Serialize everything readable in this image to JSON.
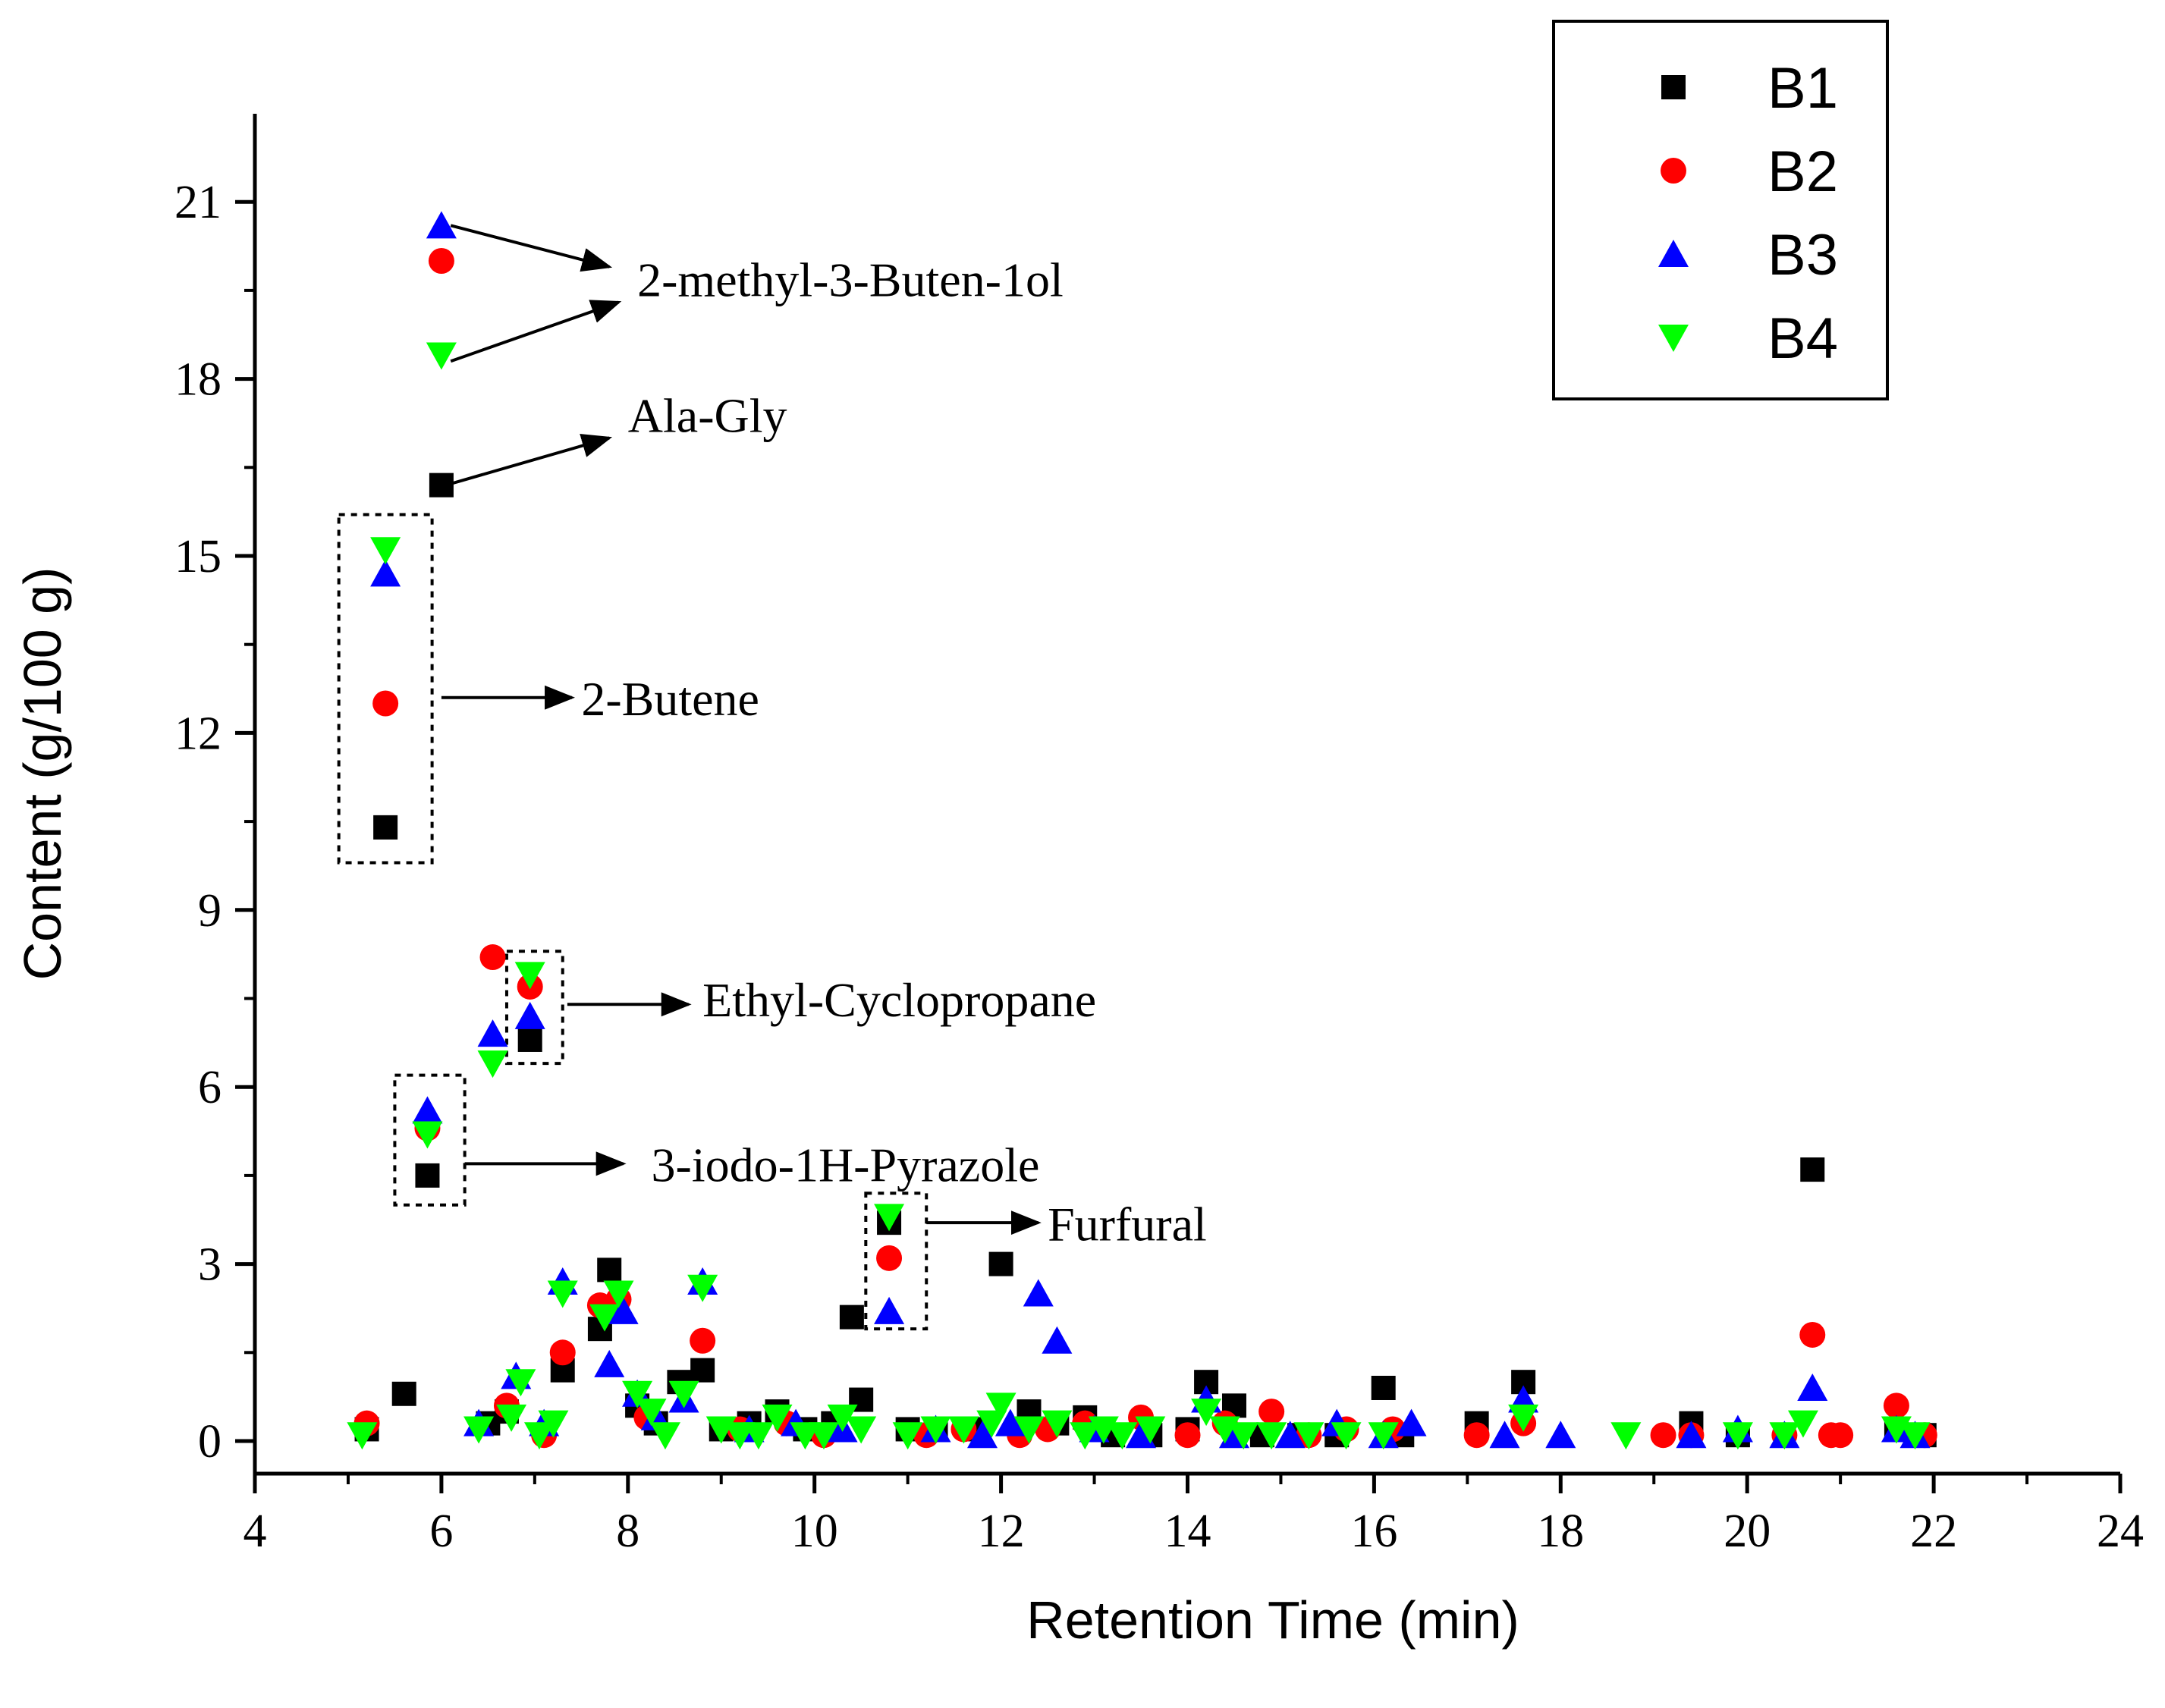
{
  "chart_data": {
    "type": "scatter",
    "title": "",
    "xlabel": "Retention Time (min)",
    "ylabel": "Content (g/100 g)",
    "xlim": [
      4,
      24
    ],
    "ylim": [
      -0.5,
      22
    ],
    "xticks": [
      4,
      6,
      8,
      10,
      12,
      14,
      16,
      18,
      20,
      22,
      24
    ],
    "yticks": [
      0,
      3,
      6,
      9,
      12,
      15,
      18,
      21
    ],
    "grid": false,
    "legend_position": "top-right",
    "series": [
      {
        "name": "B1",
        "marker": "square",
        "color": "#000000",
        "points": [
          [
            5.2,
            0.2
          ],
          [
            5.6,
            0.8
          ],
          [
            6.0,
            16.2
          ],
          [
            5.4,
            10.4
          ],
          [
            5.85,
            4.5
          ],
          [
            6.5,
            0.3
          ],
          [
            6.7,
            0.5
          ],
          [
            6.95,
            6.8
          ],
          [
            7.3,
            1.2
          ],
          [
            7.7,
            1.9
          ],
          [
            7.8,
            2.9
          ],
          [
            8.1,
            0.6
          ],
          [
            8.3,
            0.3
          ],
          [
            8.55,
            1.0
          ],
          [
            8.8,
            1.2
          ],
          [
            9.0,
            0.2
          ],
          [
            9.3,
            0.3
          ],
          [
            9.6,
            0.5
          ],
          [
            9.9,
            0.2
          ],
          [
            10.2,
            0.3
          ],
          [
            10.4,
            2.1
          ],
          [
            10.5,
            0.7
          ],
          [
            10.8,
            3.7
          ],
          [
            11.0,
            0.2
          ],
          [
            11.3,
            0.2
          ],
          [
            11.7,
            0.2
          ],
          [
            12.0,
            3.0
          ],
          [
            12.3,
            0.5
          ],
          [
            12.6,
            0.3
          ],
          [
            12.9,
            0.4
          ],
          [
            13.2,
            0.1
          ],
          [
            13.6,
            0.1
          ],
          [
            14.0,
            0.2
          ],
          [
            14.2,
            1.0
          ],
          [
            14.5,
            0.6
          ],
          [
            14.8,
            0.1
          ],
          [
            15.2,
            0.1
          ],
          [
            15.6,
            0.1
          ],
          [
            16.1,
            0.9
          ],
          [
            16.3,
            0.1
          ],
          [
            17.1,
            0.3
          ],
          [
            17.6,
            1.0
          ],
          [
            19.4,
            0.3
          ],
          [
            19.9,
            0.1
          ],
          [
            20.7,
            4.6
          ],
          [
            21.6,
            0.2
          ],
          [
            21.9,
            0.1
          ]
        ]
      },
      {
        "name": "B2",
        "marker": "circle",
        "color": "#ff0000",
        "points": [
          [
            5.2,
            0.3
          ],
          [
            6.0,
            20.0
          ],
          [
            5.4,
            12.5
          ],
          [
            5.85,
            5.3
          ],
          [
            6.55,
            8.2
          ],
          [
            6.95,
            7.7
          ],
          [
            6.7,
            0.6
          ],
          [
            7.1,
            0.1
          ],
          [
            7.3,
            1.5
          ],
          [
            7.7,
            2.3
          ],
          [
            7.9,
            2.4
          ],
          [
            8.2,
            0.4
          ],
          [
            8.8,
            1.7
          ],
          [
            9.2,
            0.2
          ],
          [
            9.7,
            0.3
          ],
          [
            10.1,
            0.1
          ],
          [
            10.8,
            3.1
          ],
          [
            11.2,
            0.1
          ],
          [
            11.6,
            0.2
          ],
          [
            12.2,
            0.1
          ],
          [
            12.5,
            0.2
          ],
          [
            12.9,
            0.3
          ],
          [
            13.5,
            0.4
          ],
          [
            14.0,
            0.1
          ],
          [
            14.4,
            0.3
          ],
          [
            14.9,
            0.5
          ],
          [
            15.3,
            0.1
          ],
          [
            15.7,
            0.2
          ],
          [
            16.2,
            0.2
          ],
          [
            17.1,
            0.1
          ],
          [
            17.6,
            0.3
          ],
          [
            19.1,
            0.1
          ],
          [
            19.4,
            0.1
          ],
          [
            20.4,
            0.1
          ],
          [
            20.7,
            1.8
          ],
          [
            20.9,
            0.1
          ],
          [
            21.0,
            0.1
          ],
          [
            21.6,
            0.6
          ],
          [
            21.9,
            0.1
          ]
        ]
      },
      {
        "name": "B3",
        "marker": "triangle-up",
        "color": "#0000ff",
        "points": [
          [
            6.0,
            20.6
          ],
          [
            5.4,
            14.7
          ],
          [
            5.85,
            5.6
          ],
          [
            6.55,
            6.9
          ],
          [
            6.95,
            7.2
          ],
          [
            6.4,
            0.3
          ],
          [
            6.8,
            1.1
          ],
          [
            7.1,
            0.3
          ],
          [
            7.3,
            2.7
          ],
          [
            7.8,
            1.3
          ],
          [
            7.95,
            2.2
          ],
          [
            8.1,
            0.8
          ],
          [
            8.3,
            0.4
          ],
          [
            8.6,
            0.7
          ],
          [
            8.8,
            2.7
          ],
          [
            9.3,
            0.2
          ],
          [
            9.8,
            0.3
          ],
          [
            10.3,
            0.2
          ],
          [
            10.8,
            2.2
          ],
          [
            11.3,
            0.2
          ],
          [
            11.8,
            0.1
          ],
          [
            12.1,
            0.3
          ],
          [
            12.4,
            2.5
          ],
          [
            12.6,
            1.7
          ],
          [
            13.0,
            0.2
          ],
          [
            13.5,
            0.1
          ],
          [
            14.2,
            0.7
          ],
          [
            14.5,
            0.1
          ],
          [
            15.1,
            0.1
          ],
          [
            15.6,
            0.3
          ],
          [
            16.1,
            0.1
          ],
          [
            16.4,
            0.3
          ],
          [
            17.4,
            0.1
          ],
          [
            17.6,
            0.7
          ],
          [
            18.0,
            0.1
          ],
          [
            19.4,
            0.1
          ],
          [
            19.9,
            0.2
          ],
          [
            20.4,
            0.1
          ],
          [
            20.7,
            0.9
          ],
          [
            21.6,
            0.2
          ],
          [
            21.8,
            0.1
          ]
        ]
      },
      {
        "name": "B4",
        "marker": "triangle-down",
        "color": "#00ff00",
        "points": [
          [
            5.15,
            0.1
          ],
          [
            6.0,
            18.4
          ],
          [
            5.4,
            15.1
          ],
          [
            5.85,
            5.2
          ],
          [
            6.55,
            6.4
          ],
          [
            6.95,
            7.9
          ],
          [
            6.4,
            0.2
          ],
          [
            6.75,
            0.4
          ],
          [
            6.85,
            1.0
          ],
          [
            7.05,
            0.1
          ],
          [
            7.2,
            0.3
          ],
          [
            7.3,
            2.5
          ],
          [
            7.75,
            2.1
          ],
          [
            7.9,
            2.5
          ],
          [
            8.1,
            0.8
          ],
          [
            8.25,
            0.5
          ],
          [
            8.4,
            0.1
          ],
          [
            8.6,
            0.8
          ],
          [
            8.8,
            2.6
          ],
          [
            9.0,
            0.2
          ],
          [
            9.2,
            0.1
          ],
          [
            9.4,
            0.1
          ],
          [
            9.6,
            0.4
          ],
          [
            9.9,
            0.1
          ],
          [
            10.1,
            0.1
          ],
          [
            10.3,
            0.4
          ],
          [
            10.5,
            0.2
          ],
          [
            10.8,
            3.8
          ],
          [
            11.0,
            0.1
          ],
          [
            11.3,
            0.2
          ],
          [
            11.6,
            0.2
          ],
          [
            11.9,
            0.3
          ],
          [
            12.0,
            0.6
          ],
          [
            12.3,
            0.2
          ],
          [
            12.6,
            0.3
          ],
          [
            12.9,
            0.1
          ],
          [
            13.1,
            0.2
          ],
          [
            13.3,
            0.1
          ],
          [
            13.6,
            0.2
          ],
          [
            14.2,
            0.5
          ],
          [
            14.4,
            0.2
          ],
          [
            14.6,
            0.1
          ],
          [
            14.9,
            0.1
          ],
          [
            15.3,
            0.1
          ],
          [
            15.7,
            0.1
          ],
          [
            16.1,
            0.1
          ],
          [
            17.6,
            0.4
          ],
          [
            18.7,
            0.1
          ],
          [
            19.9,
            0.1
          ],
          [
            20.4,
            0.1
          ],
          [
            20.6,
            0.3
          ],
          [
            21.6,
            0.2
          ],
          [
            21.8,
            0.1
          ]
        ]
      }
    ],
    "annotations": [
      {
        "text": "2-methyl-3-Buten-1ol",
        "arrows": [
          [
            6.1,
            20.6,
            7.8,
            19.9
          ],
          [
            6.1,
            18.3,
            7.9,
            19.3
          ]
        ],
        "label_at": [
          8.1,
          19.4
        ]
      },
      {
        "text": "Ala-Gly",
        "arrows": [
          [
            6.05,
            16.2,
            7.8,
            17.0
          ]
        ],
        "label_at": [
          8.0,
          17.1
        ]
      },
      {
        "text": "2-Butene",
        "arrows": [
          [
            6.0,
            12.6,
            7.4,
            12.6
          ]
        ],
        "label_at": [
          7.5,
          12.3
        ]
      },
      {
        "text": "Ethyl-Cyclopropane",
        "arrows": [
          [
            7.35,
            7.4,
            8.65,
            7.4
          ]
        ],
        "label_at": [
          8.8,
          7.2
        ]
      },
      {
        "text": "3-iodo-1H-Pyrazole",
        "arrows": [
          [
            6.25,
            4.7,
            7.95,
            4.7
          ]
        ],
        "label_at": [
          8.25,
          4.4
        ]
      },
      {
        "text": "Furfural",
        "arrows": [
          [
            11.2,
            3.7,
            12.4,
            3.7
          ]
        ],
        "label_at": [
          12.5,
          3.4
        ]
      }
    ],
    "highlight_boxes": [
      {
        "x_range": [
          4.9,
          5.9
        ],
        "y_range": [
          9.8,
          15.7
        ]
      },
      {
        "x_range": [
          6.7,
          7.3
        ],
        "y_range": [
          6.4,
          8.3
        ]
      },
      {
        "x_range": [
          5.5,
          6.25
        ],
        "y_range": [
          4.0,
          6.2
        ]
      },
      {
        "x_range": [
          10.55,
          11.2
        ],
        "y_range": [
          1.9,
          4.2
        ]
      }
    ]
  }
}
